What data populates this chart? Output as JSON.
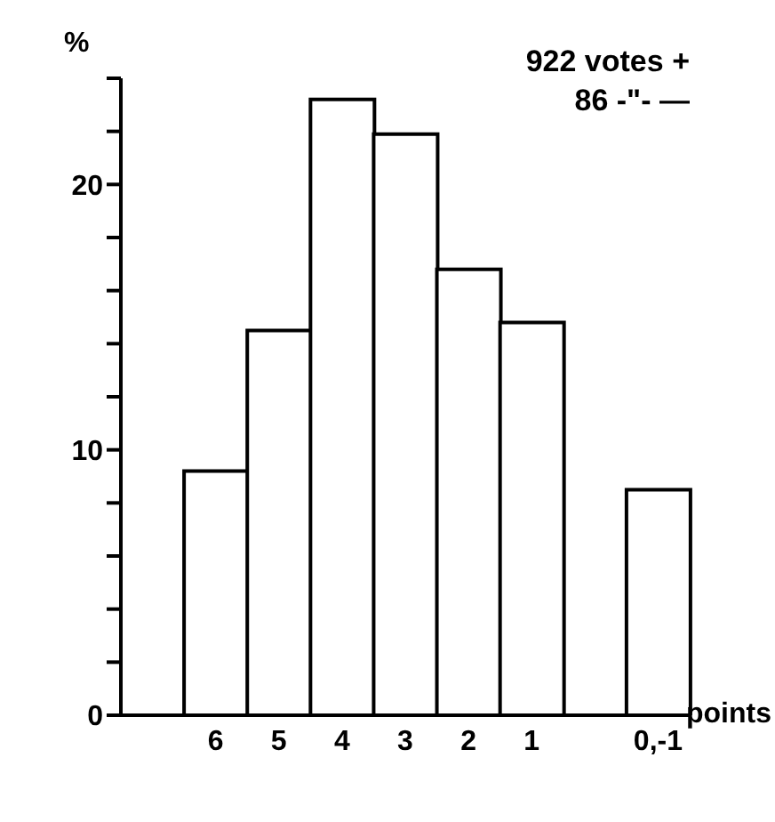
{
  "chart_data": {
    "type": "bar",
    "categories": [
      null,
      "6",
      "5",
      "4",
      "3",
      "2",
      "1",
      null,
      "0,-1"
    ],
    "values": [
      null,
      9.2,
      14.5,
      23.2,
      21.9,
      16.8,
      14.8,
      null,
      8.5
    ],
    "color": "#ffffff",
    "ylabel": "%",
    "xlabel": "points",
    "ylim": [
      0,
      24
    ],
    "yticks": [
      0,
      {
        "value": 2,
        "label": null
      },
      {
        "value": 4,
        "label": null
      },
      {
        "value": 6,
        "label": null
      },
      {
        "value": 8,
        "label": null
      },
      10,
      {
        "value": 12,
        "label": null
      },
      {
        "value": 14,
        "label": null
      },
      {
        "value": 16,
        "label": null
      },
      {
        "value": 18,
        "label": null
      },
      20,
      {
        "value": 22,
        "label": null
      },
      {
        "value": 24,
        "label": null
      }
    ],
    "annotations": [
      "922 votes +",
      "86 -\"- —"
    ],
    "grid": false,
    "legend": false
  }
}
